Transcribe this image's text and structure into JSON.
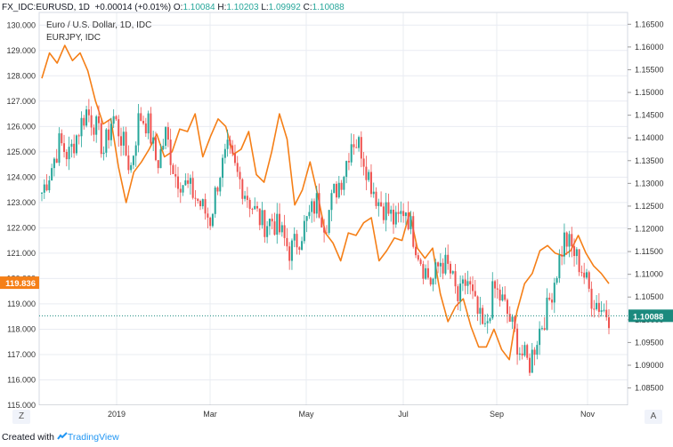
{
  "header": {
    "symbol": "FX_IDC:EURUSD, 1D",
    "change": "+0.00014 (+0.01%)",
    "open_label": "O:",
    "open": "1.10084",
    "high_label": "H:",
    "high": "1.10203",
    "low_label": "L:",
    "low": "1.09992",
    "close_label": "C:",
    "close": "1.10088"
  },
  "legend": {
    "main": "Euro / U.S. Dollar, 1D, IDC",
    "compare": "EURJPY, IDC"
  },
  "footer": {
    "created_with": "Created with",
    "brand": "TradingView"
  },
  "corner_left": "Z",
  "corner_right": "A",
  "colors": {
    "up": "#26a69a",
    "down": "#ef5350",
    "compare_line": "#f57f17",
    "price_tag": "#1b8a7e",
    "compare_tag": "#f57f17",
    "grid": "#e9ecf2"
  },
  "chart_data": {
    "type": "line",
    "title": "Euro / U.S. Dollar, 1D, IDC",
    "x": [
      "2019",
      "Mar",
      "May",
      "Jul",
      "Sep",
      "Nov"
    ],
    "left_axis": {
      "label": "",
      "ticks": [
        "130.000",
        "129.000",
        "128.000",
        "127.000",
        "126.000",
        "125.000",
        "124.000",
        "123.000",
        "122.000",
        "121.000",
        "120.000",
        "119.000",
        "118.000",
        "117.000",
        "116.000",
        "115.000"
      ],
      "range": [
        115.0,
        130.5
      ]
    },
    "right_axis": {
      "label": "",
      "ticks": [
        "1.16500",
        "1.16000",
        "1.15500",
        "1.15000",
        "1.14500",
        "1.14000",
        "1.13500",
        "1.13000",
        "1.12500",
        "1.12000",
        "1.11500",
        "1.11000",
        "1.10500",
        "1.10000",
        "1.09500",
        "1.09000",
        "1.08500"
      ],
      "range": [
        1.0812,
        1.1676
      ]
    },
    "last_price_eurusd": "1.10088",
    "last_price_eurjpy": "119.836",
    "series": [
      {
        "name": "EURUSD",
        "type": "candlestick",
        "x_range": [
          "Nov 2018",
          "Nov 2019"
        ],
        "approx_closes": [
          1.128,
          1.133,
          1.139,
          1.136,
          1.141,
          1.146,
          1.143,
          1.137,
          1.145,
          1.14,
          1.133,
          1.145,
          1.143,
          1.134,
          1.141,
          1.132,
          1.13,
          1.128,
          1.125,
          1.122,
          1.132,
          1.137,
          1.132,
          1.128,
          1.124,
          1.121,
          1.122,
          1.119,
          1.115,
          1.118,
          1.122,
          1.126,
          1.121,
          1.128,
          1.132,
          1.14,
          1.138,
          1.131,
          1.126,
          1.124,
          1.121,
          1.125,
          1.118,
          1.112,
          1.108,
          1.113,
          1.111,
          1.104,
          1.109,
          1.102,
          1.097,
          1.107,
          1.104,
          1.099,
          1.093,
          1.09,
          1.097,
          1.102,
          1.11,
          1.118,
          1.115,
          1.111,
          1.105,
          1.103,
          1.101
        ]
      },
      {
        "name": "EURJPY",
        "type": "line",
        "x_range": [
          "Nov 2018",
          "Nov 2019"
        ],
        "approx_values": [
          127.9,
          128.9,
          128.5,
          129.2,
          128.6,
          128.9,
          128.2,
          127.0,
          126.1,
          126.3,
          124.4,
          123.0,
          124.2,
          124.6,
          125.1,
          125.7,
          124.8,
          125.0,
          125.9,
          125.8,
          126.5,
          124.8,
          125.6,
          126.3,
          126.0,
          124.9,
          125.1,
          125.8,
          124.1,
          123.8,
          125.0,
          126.5,
          125.5,
          122.9,
          123.5,
          124.6,
          123.3,
          121.8,
          121.4,
          120.7,
          121.8,
          121.7,
          122.2,
          122.4,
          120.7,
          121.1,
          121.6,
          121.5,
          122.6,
          121.2,
          120.8,
          121.2,
          119.4,
          118.3,
          118.9,
          119.2,
          118.1,
          117.3,
          117.3,
          118.0,
          117.2,
          116.8,
          118.7,
          119.8,
          120.2,
          121.1,
          121.3,
          121.0,
          120.9,
          121.1,
          121.7,
          121.0,
          120.5,
          120.2,
          119.8
        ]
      }
    ],
    "grid": true,
    "legend_position": "top-left"
  }
}
